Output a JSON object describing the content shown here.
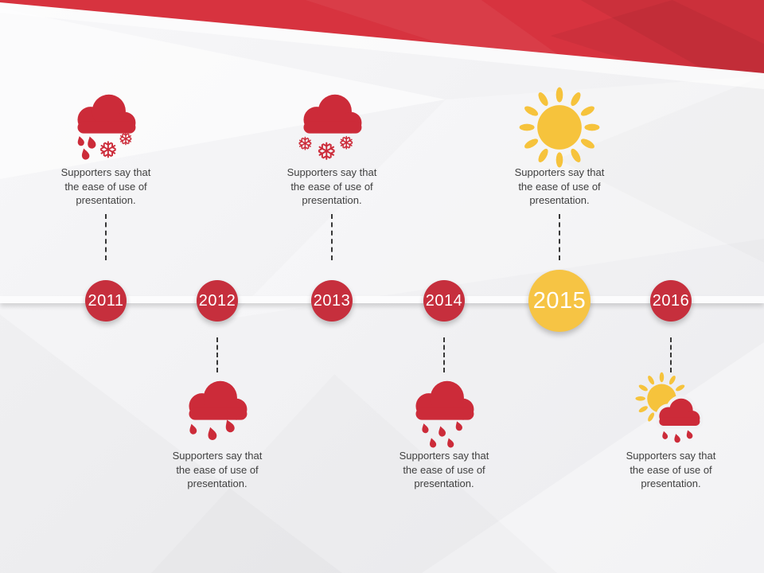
{
  "colors": {
    "background": "#f1f1f3",
    "banner_red": "#d7333f",
    "icon_red": "#cc2b39",
    "icon_yellow": "#f6c33c",
    "circle_red": "#c62f3d",
    "circle_yellow": "#f6c444",
    "year_text": "#ffffff",
    "description_text": "#3f3f3f",
    "timeline_bar": "#fcfcfd"
  },
  "timeline": {
    "items": [
      {
        "year": "2011",
        "position": "top",
        "icon": "sleet-cloud-icon",
        "description": "Supporters say that the ease of use of presentation.",
        "highlighted": false
      },
      {
        "year": "2012",
        "position": "bottom",
        "icon": "rain-cloud-icon",
        "description": "Supporters say that the ease of use of presentation.",
        "highlighted": false
      },
      {
        "year": "2013",
        "position": "top",
        "icon": "snow-cloud-icon",
        "description": "Supporters say that the ease of use of presentation.",
        "highlighted": false
      },
      {
        "year": "2014",
        "position": "bottom",
        "icon": "heavy-rain-cloud-icon",
        "description": "Supporters say that the ease of use of presentation.",
        "highlighted": false
      },
      {
        "year": "2015",
        "position": "top",
        "icon": "sun-icon",
        "description": "Supporters say that the ease of use of presentation.",
        "highlighted": true
      },
      {
        "year": "2016",
        "position": "bottom",
        "icon": "sun-rain-cloud-icon",
        "description": "Supporters say that the ease of use of presentation.",
        "highlighted": false
      }
    ]
  }
}
